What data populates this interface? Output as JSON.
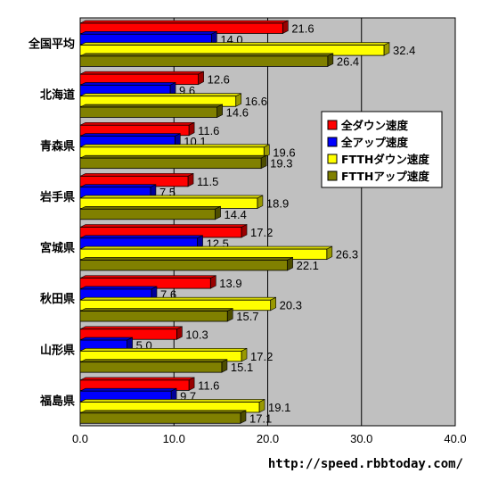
{
  "chart_data": {
    "type": "bar",
    "orientation": "horizontal",
    "categories": [
      "全国平均",
      "北海道",
      "青森県",
      "岩手県",
      "宮城県",
      "秋田県",
      "山形県",
      "福島県"
    ],
    "series": [
      {
        "name": "全ダウン速度",
        "color": "#ff0000",
        "values": [
          21.6,
          12.6,
          11.6,
          11.5,
          17.2,
          13.9,
          10.3,
          11.6
        ]
      },
      {
        "name": "全アップ速度",
        "color": "#0000ff",
        "values": [
          14.0,
          9.6,
          10.1,
          7.5,
          12.5,
          7.6,
          5.0,
          9.7
        ]
      },
      {
        "name": "FTTHダウン速度",
        "color": "#ffff00",
        "values": [
          32.4,
          16.6,
          19.6,
          18.9,
          26.3,
          20.3,
          17.2,
          19.1
        ]
      },
      {
        "name": "FTTHアップ速度",
        "color": "#808000",
        "values": [
          26.4,
          14.6,
          19.3,
          14.4,
          22.1,
          15.7,
          15.1,
          17.1
        ]
      }
    ],
    "xlim": [
      0,
      40
    ],
    "xticks": [
      "0.0",
      "10.0",
      "20.0",
      "30.0",
      "40.0"
    ],
    "grid": true,
    "plot_background": "#c0c0c0",
    "legend_position": "right"
  },
  "footer": {
    "url": "http://speed.rbbtoday.com/"
  }
}
